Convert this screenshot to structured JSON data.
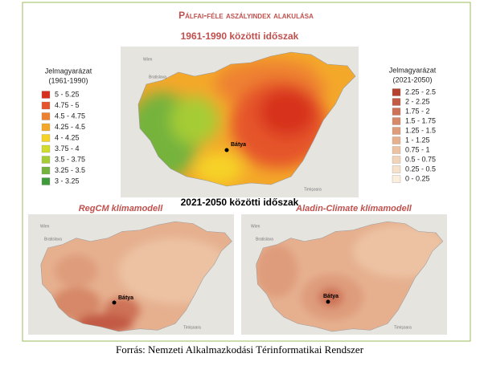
{
  "title": "Pálfai-féle aszályindex alakulása",
  "period_1": "1961-1990 közötti időszak",
  "period_2": "2021-2050 közötti időszak",
  "legend_left": {
    "title": "Jelmagyarázat",
    "subtitle": "(1961-1990)",
    "items": [
      {
        "label": "5 - 5.25",
        "color": "#d7301f"
      },
      {
        "label": "4.75 - 5",
        "color": "#e5542c"
      },
      {
        "label": "4.5 - 4.75",
        "color": "#ee8130"
      },
      {
        "label": "4.25 - 4.5",
        "color": "#f4a82a"
      },
      {
        "label": "4 - 4.25",
        "color": "#f6d325"
      },
      {
        "label": "3.75 - 4",
        "color": "#d2dc2c"
      },
      {
        "label": "3.5 - 3.75",
        "color": "#a6cc36"
      },
      {
        "label": "3.25 - 3.5",
        "color": "#74b33c"
      },
      {
        "label": "3 - 3.25",
        "color": "#3f9a3c"
      }
    ]
  },
  "legend_right": {
    "title": "Jelmagyarázat",
    "subtitle": "(2021-2050)",
    "items": [
      {
        "label": "2.25 - 2.5",
        "color": "#b5412f"
      },
      {
        "label": "2 - 2.25",
        "color": "#c25a44"
      },
      {
        "label": "1.75 - 2",
        "color": "#cd7257"
      },
      {
        "label": "1.5 - 1.75",
        "color": "#d68868"
      },
      {
        "label": "1.25 - 1.5",
        "color": "#de9c7b"
      },
      {
        "label": "1 - 1.25",
        "color": "#e6b08f"
      },
      {
        "label": "0.75 - 1",
        "color": "#ecc2a3"
      },
      {
        "label": "0.5 - 0.75",
        "color": "#f2d3b7"
      },
      {
        "label": "0.25 - 0.5",
        "color": "#f6e1ca"
      },
      {
        "label": "0 - 0.25",
        "color": "#fbeedc"
      }
    ]
  },
  "maps": [
    {
      "town": "Bátya",
      "places": [
        "Wien",
        "Bratislava",
        "Timișoara"
      ]
    },
    {
      "model": "RegCM klímamodell",
      "town": "Bátya",
      "places": [
        "Wien",
        "Bratislava",
        "Timișoara"
      ]
    },
    {
      "model": "Aladin-Climate klímamodell",
      "town": "Bátya",
      "places": [
        "Wien",
        "Bratislava",
        "Timișoara"
      ]
    }
  ],
  "caption": "Forrás: Nemzeti Alkalmazkodási Térinformatikai Rendszer"
}
